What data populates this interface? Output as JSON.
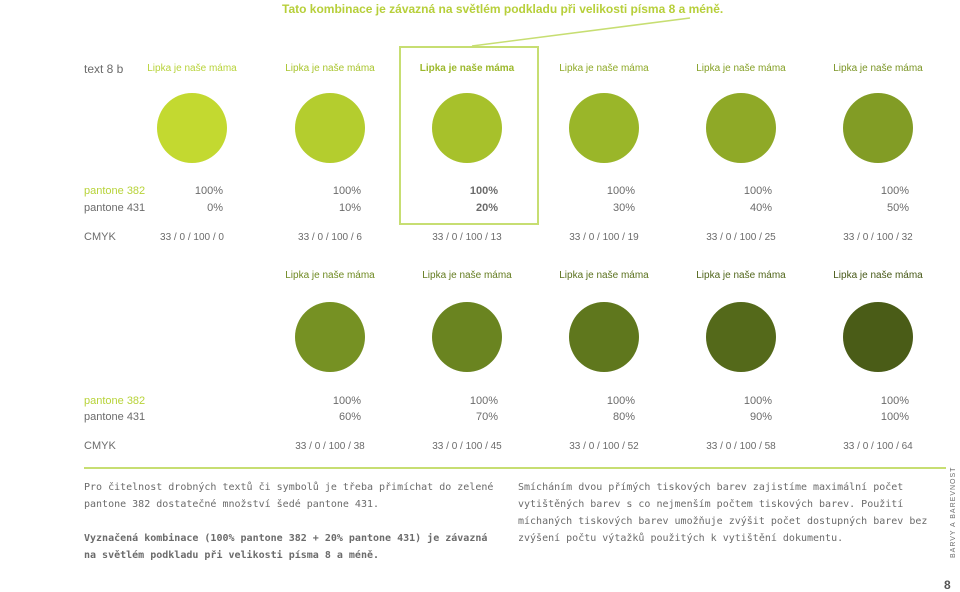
{
  "top_note": "Tato kombinace je závazná na světlém podkladu při velikosti písma 8 a méně.",
  "labels": {
    "text_row": "text 8 b",
    "pantone_382": "pantone 382",
    "pantone_431": "pantone 431",
    "cmyk": "CMYK"
  },
  "sample_text": "Lipka je naše máma",
  "row1": [
    {
      "color": "#c3d930",
      "text_color": "#b8d33a",
      "p382": "100%",
      "p431": "0%",
      "cmyk": "33 / 0 / 100 / 0"
    },
    {
      "color": "#b4cd2e",
      "text_color": "#a9c52e",
      "p382": "100%",
      "p431": "10%",
      "cmyk": "33 / 0 / 100 / 6"
    },
    {
      "color": "#a7c12b",
      "text_color": "#9cb82c",
      "p382": "100%",
      "p431": "20%",
      "cmyk": "33 / 0 / 100 / 13"
    },
    {
      "color": "#9ab629",
      "text_color": "#8faa28",
      "p382": "100%",
      "p431": "30%",
      "cmyk": "33 / 0 / 100 / 19"
    },
    {
      "color": "#8fa927",
      "text_color": "#85a026",
      "p382": "100%",
      "p431": "40%",
      "cmyk": "33 / 0 / 100 / 25"
    },
    {
      "color": "#829c25",
      "text_color": "#7a9424",
      "p382": "100%",
      "p431": "50%",
      "cmyk": "33 / 0 / 100 / 32"
    }
  ],
  "row2": [
    {
      "color": "#769123",
      "text_color": "#6f8a22",
      "p382": "100%",
      "p431": "60%",
      "cmyk": "33 / 0 / 100 / 38"
    },
    {
      "color": "#6a8420",
      "text_color": "#647c20",
      "p382": "100%",
      "p431": "70%",
      "cmyk": "33 / 0 / 100 / 45"
    },
    {
      "color": "#5f771d",
      "text_color": "#5a711d",
      "p382": "100%",
      "p431": "80%",
      "cmyk": "33 / 0 / 100 / 52"
    },
    {
      "color": "#54691a",
      "text_color": "#50651a",
      "p382": "100%",
      "p431": "90%",
      "cmyk": "33 / 0 / 100 / 58"
    },
    {
      "color": "#4a5c17",
      "text_color": "#465816",
      "p382": "100%",
      "p431": "100%",
      "cmyk": "33 / 0 / 100 / 64"
    }
  ],
  "col1": {
    "para1": "Pro čitelnost drobných textů či symbolů je třeba přimíchat do zelené pantone 382 dostatečné množství šedé pantone 431.",
    "para2": "Vyznačená kombinace (100% pantone 382 + 20% pantone 431) je závazná na světlém podkladu při velikosti písma 8 a méně."
  },
  "col2": {
    "para1": "Smícháním dvou přímých tiskových barev zajistíme maximální počet vytištěných barev s co nejmenším počtem tiskových barev. Použití míchaných tiskových barev umožňuje zvýšit počet dostupných barev bez zvýšení počtu výtažků použitých k vytištění dokumentu."
  },
  "side_label": "BARVY A BAREVNOST",
  "page_number": "8"
}
